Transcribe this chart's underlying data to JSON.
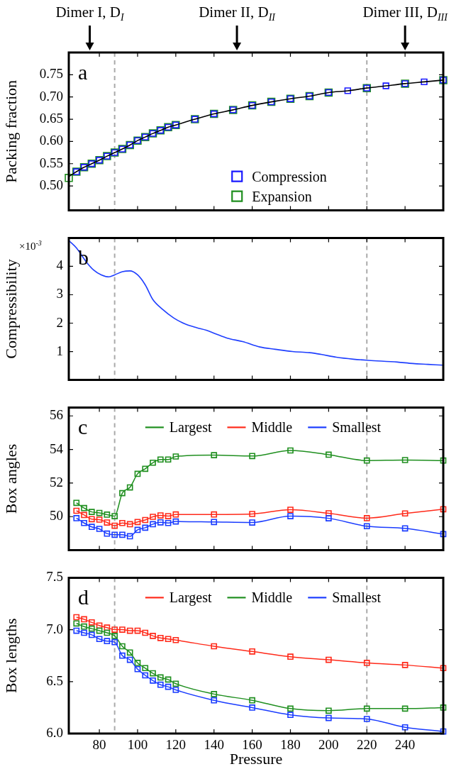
{
  "chart_data": [
    {
      "type": "scatter",
      "ylabel": "Packing fraction",
      "marker": "square",
      "legend": "bottom",
      "tick_labels": "y",
      "annotations": [
        "a",
        "Dimer I, D$_{I}$",
        "Dimer II, D$_{II}$",
        "Dimer III, D$_{III}$"
      ],
      "xlim": [
        64,
        260
      ],
      "xticks": [
        80,
        100,
        120,
        140,
        160,
        180,
        200,
        220,
        240
      ],
      "ylim": [
        0.445,
        0.8
      ],
      "yticks": [
        {
          "value": 0.5,
          "label": "0.50"
        },
        {
          "value": 0.55,
          "label": "0.55"
        },
        {
          "value": 0.6,
          "label": "0.60"
        },
        {
          "value": 0.65,
          "label": "0.65"
        },
        {
          "value": 0.7,
          "label": "0.70"
        },
        {
          "value": 0.75,
          "label": "0.75"
        }
      ],
      "ref_lines": [
        {
          "axis": "x",
          "value": 88,
          "color": "#aaaaaa",
          "line_style": "dashed"
        },
        {
          "axis": "x",
          "value": 220,
          "color": "#aaaaaa",
          "line_style": "dashed"
        }
      ],
      "series": [
        {
          "name": "Expansion",
          "color": "#1f8f1f",
          "x": [
            64,
            68,
            72,
            76,
            80,
            84,
            88,
            92,
            96,
            100,
            104,
            108,
            112,
            116,
            120,
            130,
            140,
            150,
            160,
            170,
            180,
            190,
            200,
            220,
            240,
            260
          ],
          "values": [
            0.518,
            0.532,
            0.542,
            0.55,
            0.558,
            0.567,
            0.575,
            0.583,
            0.592,
            0.602,
            0.61,
            0.618,
            0.625,
            0.632,
            0.637,
            0.65,
            0.662,
            0.671,
            0.681,
            0.689,
            0.696,
            0.702,
            0.71,
            0.72,
            0.73,
            0.738
          ]
        },
        {
          "name": "Compression",
          "color": "#1a1aff",
          "x": [
            68,
            72,
            76,
            80,
            84,
            88,
            92,
            96,
            100,
            104,
            108,
            112,
            116,
            120,
            130,
            140,
            150,
            160,
            170,
            180,
            190,
            200,
            210,
            220,
            230,
            240,
            250,
            260
          ],
          "values": [
            0.532,
            0.542,
            0.55,
            0.558,
            0.567,
            0.575,
            0.583,
            0.592,
            0.602,
            0.61,
            0.618,
            0.625,
            0.632,
            0.637,
            0.65,
            0.662,
            0.671,
            0.681,
            0.689,
            0.696,
            0.702,
            0.71,
            0.714,
            0.72,
            0.725,
            0.73,
            0.734,
            0.738
          ]
        },
        {
          "type": "line",
          "marker": "none",
          "line_style": "solid",
          "color": "#000000",
          "x": [
            64,
            68,
            72,
            76,
            80,
            84,
            88,
            92,
            96,
            100,
            104,
            108,
            112,
            116,
            120,
            130,
            140,
            150,
            160,
            170,
            180,
            190,
            200,
            210,
            220,
            230,
            240,
            250,
            260
          ],
          "values": [
            0.521,
            0.532,
            0.542,
            0.55,
            0.558,
            0.567,
            0.575,
            0.583,
            0.592,
            0.602,
            0.61,
            0.618,
            0.625,
            0.632,
            0.637,
            0.65,
            0.662,
            0.671,
            0.681,
            0.689,
            0.696,
            0.702,
            0.71,
            0.714,
            0.72,
            0.725,
            0.73,
            0.734,
            0.738
          ]
        }
      ]
    },
    {
      "type": "line",
      "ylabel": "Compressibility",
      "line_style": "solid",
      "tick_labels": "y",
      "annotations": [
        "b",
        "×10$^{-3}$"
      ],
      "xlim": [
        64,
        260
      ],
      "xticks": [
        80,
        100,
        120,
        140,
        160,
        180,
        200,
        220,
        240
      ],
      "ylim": [
        0,
        5
      ],
      "yticks": [
        1,
        2,
        3,
        4
      ],
      "ref_lines": [
        {
          "axis": "x",
          "value": 88,
          "color": "#aaaaaa",
          "line_style": "dashed"
        },
        {
          "axis": "x",
          "value": 220,
          "color": "#aaaaaa",
          "line_style": "dashed"
        }
      ],
      "series": [
        {
          "color": "#1f3fff",
          "x": [
            64,
            68,
            73,
            77,
            81,
            85,
            88,
            92,
            96,
            100,
            104,
            108,
            113,
            119,
            125,
            131,
            136,
            141,
            147,
            155,
            164,
            172,
            181,
            190,
            196,
            204,
            213,
            221,
            236,
            244,
            252,
            260
          ],
          "values": [
            4.91,
            4.65,
            4.17,
            3.87,
            3.7,
            3.63,
            3.7,
            3.81,
            3.84,
            3.7,
            3.35,
            2.83,
            2.49,
            2.18,
            1.97,
            1.84,
            1.75,
            1.62,
            1.47,
            1.35,
            1.16,
            1.08,
            1.0,
            0.96,
            0.9,
            0.8,
            0.73,
            0.69,
            0.63,
            0.58,
            0.55,
            0.52
          ]
        }
      ]
    },
    {
      "type": "line",
      "ylabel": "Box angles",
      "marker": "square",
      "line_style": "solid",
      "legend": "top",
      "tick_labels": "y",
      "annotations": [
        "c"
      ],
      "x": [
        68,
        72,
        76,
        80,
        84,
        88,
        92,
        96,
        100,
        104,
        108,
        112,
        116,
        120,
        140,
        160,
        180,
        200,
        220,
        240,
        260
      ],
      "xlim": [
        64,
        260
      ],
      "xticks": [
        80,
        100,
        120,
        140,
        160,
        180,
        200,
        220,
        240
      ],
      "ylim": [
        48,
        56.5
      ],
      "yticks": [
        50,
        52,
        54,
        56
      ],
      "ref_lines": [
        {
          "axis": "x",
          "value": 88,
          "color": "#aaaaaa",
          "line_style": "dashed"
        },
        {
          "axis": "x",
          "value": 220,
          "color": "#aaaaaa",
          "line_style": "dashed"
        }
      ],
      "series": [
        {
          "name": "Largest",
          "color": "#1f8f1f",
          "values": [
            50.82,
            50.51,
            50.28,
            50.22,
            50.12,
            50.03,
            51.4,
            51.74,
            52.55,
            52.85,
            53.21,
            53.4,
            53.4,
            53.58,
            53.66,
            53.61,
            53.94,
            53.69,
            53.34,
            53.37,
            53.34
          ]
        },
        {
          "name": "Middle",
          "color": "#ff2a1a",
          "values": [
            50.35,
            50.1,
            49.85,
            49.82,
            49.65,
            49.46,
            49.62,
            49.55,
            49.68,
            49.8,
            49.99,
            50.07,
            50.03,
            50.13,
            50.13,
            50.16,
            50.41,
            50.2,
            49.91,
            50.19,
            50.44
          ]
        },
        {
          "name": "Smallest",
          "color": "#1a3cff",
          "values": [
            49.91,
            49.62,
            49.39,
            49.27,
            48.99,
            48.92,
            48.92,
            48.83,
            49.21,
            49.34,
            49.55,
            49.66,
            49.62,
            49.71,
            49.68,
            49.65,
            50.03,
            49.9,
            49.43,
            49.3,
            48.96
          ]
        }
      ]
    },
    {
      "type": "line",
      "ylabel": "Box lengths",
      "xlabel": "Pressure",
      "marker": "square",
      "line_style": "solid",
      "legend": "top",
      "annotations": [
        "d"
      ],
      "x": [
        68,
        72,
        76,
        80,
        84,
        88,
        92,
        96,
        100,
        104,
        108,
        112,
        116,
        120,
        140,
        160,
        180,
        200,
        220,
        240,
        260
      ],
      "xlim": [
        64,
        260
      ],
      "xticks": [
        80,
        100,
        120,
        140,
        160,
        180,
        200,
        220,
        240
      ],
      "ylim": [
        6,
        7.5
      ],
      "yticks": [
        {
          "value": 6,
          "label": "6.0"
        },
        6.5,
        {
          "value": 7,
          "label": "7.0"
        },
        7.5
      ],
      "ref_lines": [
        {
          "axis": "x",
          "value": 88,
          "color": "#aaaaaa",
          "line_style": "dashed"
        },
        {
          "axis": "x",
          "value": 220,
          "color": "#aaaaaa",
          "line_style": "dashed"
        }
      ],
      "series": [
        {
          "name": "Largest",
          "color": "#ff2a1a",
          "values": [
            7.12,
            7.1,
            7.07,
            7.04,
            7.02,
            7.0,
            7.0,
            6.99,
            6.99,
            6.97,
            6.94,
            6.92,
            6.91,
            6.9,
            6.84,
            6.79,
            6.74,
            6.71,
            6.68,
            6.66,
            6.63
          ]
        },
        {
          "name": "Middle",
          "color": "#1f8f1f",
          "values": [
            7.06,
            7.03,
            7.01,
            6.99,
            6.97,
            6.94,
            6.84,
            6.78,
            6.68,
            6.63,
            6.58,
            6.54,
            6.52,
            6.48,
            6.38,
            6.32,
            6.24,
            6.22,
            6.24,
            6.24,
            6.25
          ]
        },
        {
          "name": "Smallest",
          "color": "#1a3cff",
          "values": [
            6.99,
            6.97,
            6.95,
            6.91,
            6.89,
            6.88,
            6.75,
            6.71,
            6.62,
            6.56,
            6.51,
            6.47,
            6.45,
            6.42,
            6.32,
            6.25,
            6.18,
            6.15,
            6.14,
            6.06,
            6.02
          ]
        }
      ]
    }
  ]
}
